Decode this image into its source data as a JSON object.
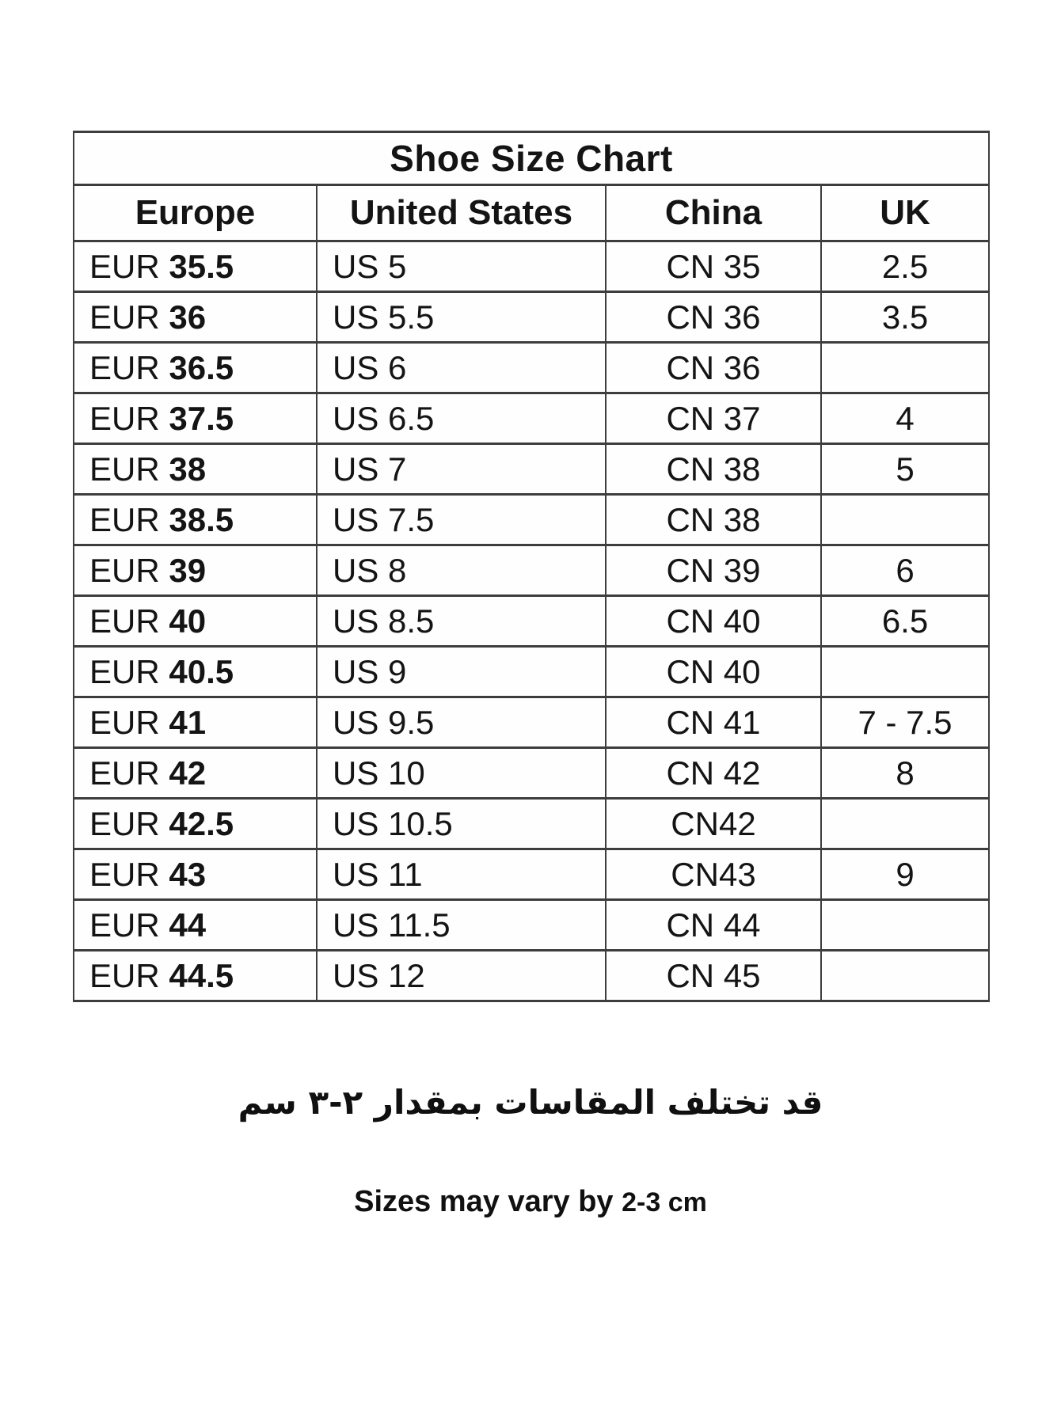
{
  "table": {
    "title": "Shoe Size Chart",
    "columns": [
      "Europe",
      "United States",
      "China",
      "UK"
    ],
    "rows": [
      {
        "eur_prefix": "EUR",
        "eur_size": "35.5",
        "us": "US 5",
        "cn": "CN 35",
        "uk": "2.5"
      },
      {
        "eur_prefix": "EUR",
        "eur_size": "36",
        "us": "US 5.5",
        "cn": "CN 36",
        "uk": "3.5"
      },
      {
        "eur_prefix": "EUR",
        "eur_size": "36.5",
        "us": "US 6",
        "cn": "CN 36",
        "uk": ""
      },
      {
        "eur_prefix": "EUR",
        "eur_size": "37.5",
        "us": "US 6.5",
        "cn": "CN 37",
        "uk": "4"
      },
      {
        "eur_prefix": "EUR",
        "eur_size": "38",
        "us": "US 7",
        "cn": "CN 38",
        "uk": "5"
      },
      {
        "eur_prefix": "EUR",
        "eur_size": "38.5",
        "us": "US 7.5",
        "cn": "CN 38",
        "uk": ""
      },
      {
        "eur_prefix": "EUR",
        "eur_size": "39",
        "us": "US 8",
        "cn": "CN 39",
        "uk": "6"
      },
      {
        "eur_prefix": "EUR",
        "eur_size": "40",
        "us": "US 8.5",
        "cn": "CN 40",
        "uk": "6.5"
      },
      {
        "eur_prefix": "EUR",
        "eur_size": "40.5",
        "us": "US 9",
        "cn": "CN 40",
        "uk": ""
      },
      {
        "eur_prefix": "EUR",
        "eur_size": "41",
        "us": "US 9.5",
        "cn": "CN 41",
        "uk": "7 - 7.5"
      },
      {
        "eur_prefix": "EUR",
        "eur_size": "42",
        "us": "US 10",
        "cn": "CN 42",
        "uk": "8"
      },
      {
        "eur_prefix": "EUR",
        "eur_size": "42.5",
        "us": "US 10.5",
        "cn": "CN42",
        "uk": ""
      },
      {
        "eur_prefix": "EUR",
        "eur_size": "43",
        "us": "US 11",
        "cn": "CN43",
        "uk": "9"
      },
      {
        "eur_prefix": "EUR",
        "eur_size": "44",
        "us": "US 11.5",
        "cn": "CN 44",
        "uk": ""
      },
      {
        "eur_prefix": "EUR",
        "eur_size": "44.5",
        "us": "US 12",
        "cn": "CN 45",
        "uk": ""
      }
    ]
  },
  "notes": {
    "arabic": "قد تختلف المقاسات بمقدار ٢-٣ سم",
    "english_text": "Sizes may vary by",
    "english_measure": "2-3 cm"
  },
  "colors": {
    "border": "#3d3d3d",
    "text": "#141414",
    "background": "#ffffff"
  }
}
